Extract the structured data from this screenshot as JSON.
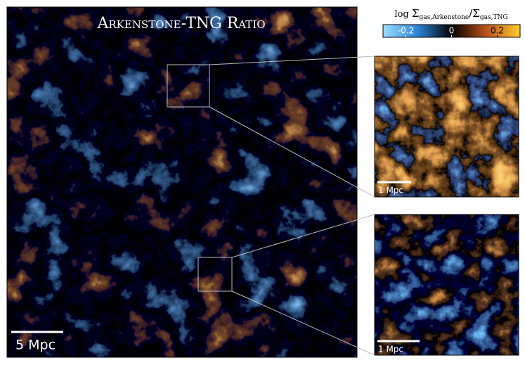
{
  "title": "Arkenstone-TNG Ratio",
  "colorbar": {
    "label": {
      "log": "log",
      "sigma1": "Σ",
      "sub1": "gas,Arkenstone",
      "sigma2": "/Σ",
      "sub2": "gas,TNG"
    },
    "lim": [
      -0.3,
      0.3
    ],
    "ticks": [
      -0.2,
      0,
      0.2
    ]
  },
  "scale_bars": {
    "main": "5 Mpc",
    "inset_top": "1 Mpc",
    "inset_bottom": "1 Mpc"
  }
}
